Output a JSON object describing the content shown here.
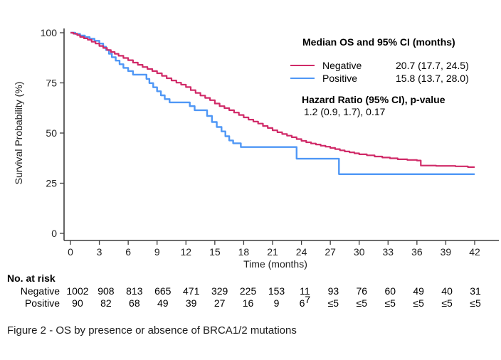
{
  "figure": {
    "caption": "Figure 2 - OS by presence or absence of BRCA1/2 mutations"
  },
  "legend": {
    "title": "Median OS and 95% CI (months)",
    "rows": [
      {
        "label": "Negative",
        "value": "20.7 (17.7, 24.5)",
        "color": "#D02A68"
      },
      {
        "label": "Positive",
        "value": "15.8 (13.7, 28.0)",
        "color": "#4F97F6"
      }
    ],
    "hazard_title": "Hazard Ratio (95% CI), p-value",
    "hazard_value": "1.2 (0.9, 1.7), 0.17"
  },
  "risk_table": {
    "header": "No. at risk",
    "time_points": [
      0,
      3,
      6,
      9,
      12,
      15,
      18,
      21,
      24,
      27,
      30,
      33,
      36,
      39,
      42
    ],
    "rows": [
      {
        "label": "Negative",
        "values": [
          "1002",
          "908",
          "813",
          "665",
          "471",
          "329",
          "225",
          "153",
          "11",
          "93",
          "76",
          "60",
          "49",
          "40",
          "31"
        ]
      },
      {
        "label": "Positive",
        "values": [
          "90",
          "82",
          "68",
          "49",
          "39",
          "27",
          "16",
          "9",
          "6",
          "≤5",
          "≤5",
          "≤5",
          "≤5",
          "≤5",
          "≤5"
        ]
      }
    ],
    "overlap_digit": {
      "text": "7",
      "row": 1,
      "col": 8
    }
  },
  "chart_data": {
    "type": "line",
    "subtype": "kaplan-meier-step",
    "title": "",
    "xlabel": "Time (months)",
    "ylabel": "Survival Probability (%)",
    "xlim": [
      0,
      42
    ],
    "ylim": [
      0,
      100
    ],
    "x_ticks": [
      0,
      3,
      6,
      9,
      12,
      15,
      18,
      21,
      24,
      27,
      30,
      33,
      36,
      39,
      42
    ],
    "y_ticks": [
      0,
      25,
      50,
      75,
      100
    ],
    "grid": false,
    "legend_position": "top-right",
    "axis_color": "#3d3d3d",
    "text_color": "#1f1f1f",
    "series": [
      {
        "name": "Negative",
        "color": "#D02A68",
        "points": [
          [
            0,
            100
          ],
          [
            0.3,
            99.5
          ],
          [
            0.7,
            98.8
          ],
          [
            1,
            97.9
          ],
          [
            1.4,
            97.2
          ],
          [
            1.8,
            96.5
          ],
          [
            2.2,
            95.5
          ],
          [
            2.6,
            94.6
          ],
          [
            3,
            93.4
          ],
          [
            3.4,
            92.4
          ],
          [
            3.8,
            91.4
          ],
          [
            4.2,
            90.4
          ],
          [
            4.6,
            89.5
          ],
          [
            5,
            88.5
          ],
          [
            5.5,
            87.4
          ],
          [
            6,
            86.3
          ],
          [
            6.5,
            85.1
          ],
          [
            7,
            84
          ],
          [
            7.5,
            82.9
          ],
          [
            8,
            81.9
          ],
          [
            8.5,
            80.9
          ],
          [
            9,
            79.8
          ],
          [
            9.5,
            78.5
          ],
          [
            10,
            77.3
          ],
          [
            10.5,
            76.2
          ],
          [
            11,
            75.1
          ],
          [
            11.5,
            74.1
          ],
          [
            12,
            72.9
          ],
          [
            12.5,
            71.4
          ],
          [
            13,
            70
          ],
          [
            13.5,
            68.7
          ],
          [
            14,
            67.5
          ],
          [
            14.5,
            66.4
          ],
          [
            15,
            64.7
          ],
          [
            15.5,
            63.4
          ],
          [
            16,
            62.4
          ],
          [
            16.5,
            61.4
          ],
          [
            17,
            60.2
          ],
          [
            17.5,
            59
          ],
          [
            18,
            57.8
          ],
          [
            18.5,
            56.7
          ],
          [
            19,
            55.7
          ],
          [
            19.5,
            54.7
          ],
          [
            20,
            53.5
          ],
          [
            20.5,
            52.5
          ],
          [
            21,
            51.4
          ],
          [
            21.5,
            50.4
          ],
          [
            22,
            49.5
          ],
          [
            22.5,
            48.7
          ],
          [
            23,
            47.9
          ],
          [
            23.5,
            47
          ],
          [
            24,
            46.1
          ],
          [
            24.5,
            45.4
          ],
          [
            25,
            44.8
          ],
          [
            25.5,
            44.3
          ],
          [
            26,
            43.7
          ],
          [
            26.5,
            43.2
          ],
          [
            27,
            42.6
          ],
          [
            27.5,
            42
          ],
          [
            28,
            41.4
          ],
          [
            28.5,
            40.8
          ],
          [
            29,
            40.4
          ],
          [
            29.5,
            39.9
          ],
          [
            30,
            39.4
          ],
          [
            30.8,
            38.9
          ],
          [
            31.6,
            38.3
          ],
          [
            32.4,
            37.8
          ],
          [
            33.2,
            37.4
          ],
          [
            34,
            36.9
          ],
          [
            35,
            36.6
          ],
          [
            36,
            36.3
          ],
          [
            36.4,
            33.8
          ],
          [
            38,
            33.6
          ],
          [
            40,
            33.4
          ],
          [
            41.3,
            33
          ],
          [
            42,
            33
          ]
        ]
      },
      {
        "name": "Positive",
        "color": "#4F97F6",
        "points": [
          [
            0,
            100
          ],
          [
            0.5,
            99.4
          ],
          [
            1,
            98.6
          ],
          [
            1.5,
            97.8
          ],
          [
            2,
            97
          ],
          [
            2.5,
            96
          ],
          [
            3,
            94.6
          ],
          [
            3.4,
            93
          ],
          [
            3.7,
            91.4
          ],
          [
            4,
            89.5
          ],
          [
            4.3,
            87.8
          ],
          [
            4.7,
            86.1
          ],
          [
            5.1,
            84.3
          ],
          [
            5.5,
            82.5
          ],
          [
            6,
            80.9
          ],
          [
            6.5,
            79.1
          ],
          [
            7.9,
            77
          ],
          [
            8.2,
            74.9
          ],
          [
            8.6,
            72.8
          ],
          [
            9,
            70.8
          ],
          [
            9.4,
            68.8
          ],
          [
            9.8,
            66.9
          ],
          [
            10.3,
            65.3
          ],
          [
            12.4,
            63.4
          ],
          [
            12.9,
            61.4
          ],
          [
            14.2,
            58.5
          ],
          [
            14.7,
            55.5
          ],
          [
            15.2,
            53
          ],
          [
            15.7,
            50.8
          ],
          [
            16.1,
            48.4
          ],
          [
            16.5,
            46.3
          ],
          [
            16.9,
            44.9
          ],
          [
            17.7,
            43
          ],
          [
            23.5,
            37.2
          ],
          [
            27.9,
            29.5
          ],
          [
            42,
            29.5
          ]
        ]
      }
    ]
  }
}
